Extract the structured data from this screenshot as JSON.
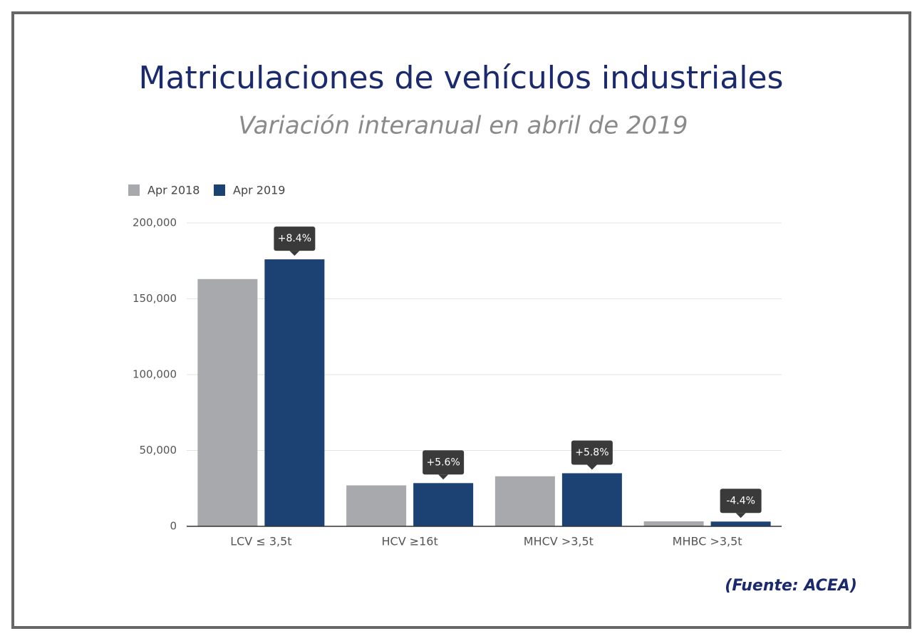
{
  "chart_data": {
    "type": "bar",
    "title": "Matriculaciones de vehículos industriales",
    "subtitle": "Variación interanual en abril de 2019",
    "source": "(Fuente: ACEA)",
    "categories": [
      "LCV ≤ 3,5t",
      "HCV ≥16t",
      "MHCV >3,5t",
      "MHBC >3,5t"
    ],
    "series": [
      {
        "name": "Apr 2018",
        "color": "#a7a9ac",
        "values": [
          163000,
          27000,
          33000,
          3300
        ]
      },
      {
        "name": "Apr 2019",
        "color": "#1b4272",
        "values": [
          176000,
          28500,
          35000,
          3150
        ]
      }
    ],
    "annotations": [
      "+8.4%",
      "+5.6%",
      "+5.8%",
      "-4.4%"
    ],
    "ylim": [
      0,
      200000
    ],
    "yticks": [
      0,
      {
        "value": 50000,
        "label": "50,000"
      },
      {
        "value": 100000,
        "label": "100,000"
      },
      {
        "value": 150000,
        "label": "150,000"
      },
      {
        "value": 200000,
        "label": "200,000"
      }
    ],
    "grid": true,
    "legend": "top-left"
  }
}
